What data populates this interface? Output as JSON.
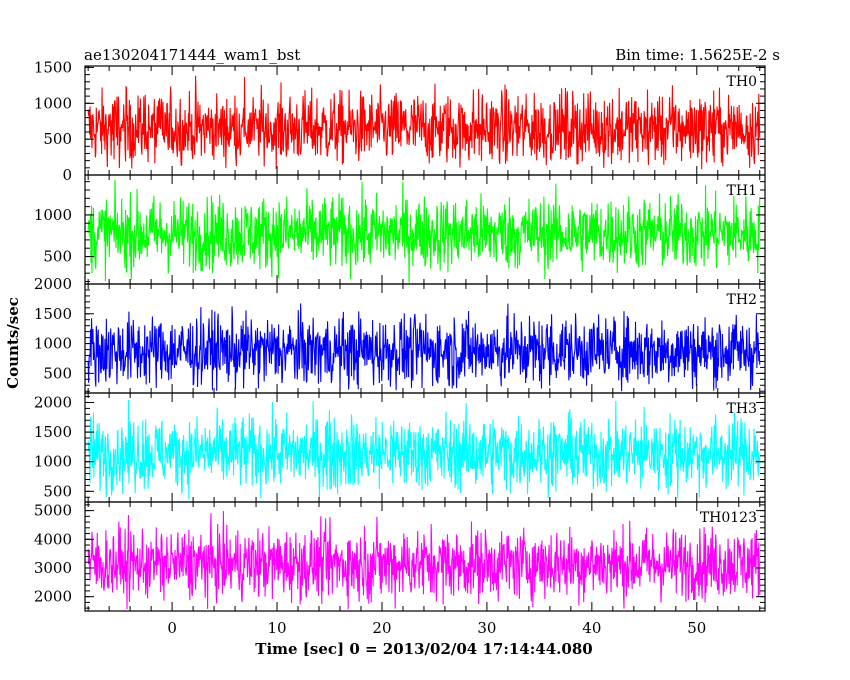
{
  "chart_data": {
    "type": "line",
    "title_left": "ae130204171444_wam1_bst",
    "title_right": "Bin time: 1.5625E-2 s",
    "xlabel": "Time [sec] 0 = 2013/02/04 17:14:44.080",
    "ylabel": "Counts/sec",
    "xlim": [
      -8.3,
      56.5
    ],
    "x_ticks": [
      0,
      10,
      20,
      30,
      40,
      50
    ],
    "x_tick_labels": [
      "0",
      "10",
      "20",
      "30",
      "40",
      "50"
    ],
    "data_x_range": [
      -8,
      56
    ],
    "grid": false,
    "panels": [
      {
        "name": "TH0",
        "color": "#ff0000",
        "ylim": [
          0,
          1520
        ],
        "yticks": [
          0,
          500,
          1000,
          1500
        ],
        "ytick_labels": [
          "0",
          "500",
          "1000",
          "1500"
        ],
        "mean": 650,
        "min": 80,
        "max": 1500
      },
      {
        "name": "TH1",
        "color": "#00ff00",
        "ylim": [
          170,
          1480
        ],
        "yticks": [
          500,
          1000
        ],
        "ytick_labels": [
          "500",
          "1000"
        ],
        "mean": 780,
        "min": 180,
        "max": 1430
      },
      {
        "name": "TH2",
        "color": "#0000ff",
        "ylim": [
          170,
          2000
        ],
        "yticks": [
          500,
          1000,
          1500,
          2000
        ],
        "ytick_labels": [
          "500",
          "1000",
          "1500",
          "2000"
        ],
        "mean": 880,
        "min": 200,
        "max": 1880
      },
      {
        "name": "TH3",
        "color": "#00ffff",
        "ylim": [
          320,
          2160
        ],
        "yticks": [
          500,
          1000,
          1500,
          2000
        ],
        "ytick_labels": [
          "500",
          "1000",
          "1500",
          "2000"
        ],
        "mean": 1150,
        "min": 350,
        "max": 2100
      },
      {
        "name": "TH0123",
        "color": "#ff00ff",
        "ylim": [
          1500,
          5300
        ],
        "yticks": [
          2000,
          3000,
          4000,
          5000
        ],
        "ytick_labels": [
          "2000",
          "3000",
          "4000",
          "5000"
        ],
        "mean": 3150,
        "min": 1550,
        "max": 5050
      }
    ]
  }
}
